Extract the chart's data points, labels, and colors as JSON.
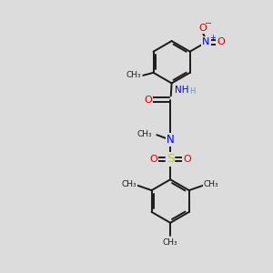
{
  "bg_color": "#dcdcdc",
  "bond_color": "#1a1a1a",
  "N_color": "#0000ee",
  "O_color": "#dd0000",
  "S_color": "#cccc00",
  "H_color": "#5f9ea0",
  "figsize": [
    3.0,
    3.0
  ],
  "dpi": 100,
  "xlim": [
    0,
    10
  ],
  "ylim": [
    0,
    10
  ]
}
